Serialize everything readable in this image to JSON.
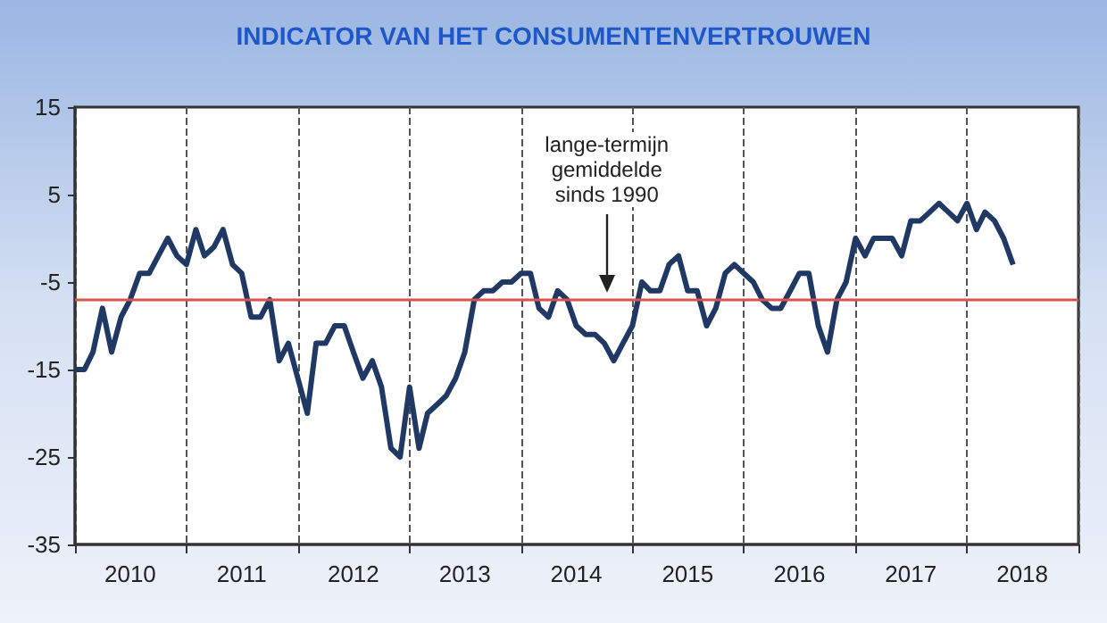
{
  "chart_data": {
    "type": "line",
    "title": "INDICATOR VAN HET CONSUMENTENVERTROUWEN",
    "x": [
      "2010-01",
      "2010-02",
      "2010-03",
      "2010-04",
      "2010-05",
      "2010-06",
      "2010-07",
      "2010-08",
      "2010-09",
      "2010-10",
      "2010-11",
      "2010-12",
      "2011-01",
      "2011-02",
      "2011-03",
      "2011-04",
      "2011-05",
      "2011-06",
      "2011-07",
      "2011-08",
      "2011-09",
      "2011-10",
      "2011-11",
      "2011-12",
      "2012-01",
      "2012-02",
      "2012-03",
      "2012-04",
      "2012-05",
      "2012-06",
      "2012-07",
      "2012-08",
      "2012-09",
      "2012-10",
      "2012-11",
      "2012-12",
      "2013-01",
      "2013-02",
      "2013-03",
      "2013-04",
      "2013-05",
      "2013-06",
      "2013-07",
      "2013-08",
      "2013-09",
      "2013-10",
      "2013-11",
      "2013-12",
      "2014-01",
      "2014-02",
      "2014-03",
      "2014-04",
      "2014-05",
      "2014-06",
      "2014-07",
      "2014-08",
      "2014-09",
      "2014-10",
      "2014-11",
      "2014-12",
      "2015-01",
      "2015-02",
      "2015-03",
      "2015-04",
      "2015-05",
      "2015-06",
      "2015-07",
      "2015-08",
      "2015-09",
      "2015-10",
      "2015-11",
      "2015-12",
      "2016-01",
      "2016-02",
      "2016-03",
      "2016-04",
      "2016-05",
      "2016-06",
      "2016-07",
      "2016-08",
      "2016-09",
      "2016-10",
      "2016-11",
      "2016-12",
      "2017-01",
      "2017-02",
      "2017-03",
      "2017-04",
      "2017-05",
      "2017-06",
      "2017-07",
      "2017-08",
      "2017-09",
      "2017-10",
      "2017-11",
      "2017-12",
      "2018-01",
      "2018-02",
      "2018-03",
      "2018-04",
      "2018-05",
      "2018-06"
    ],
    "series": [
      {
        "color": "#1f3864",
        "values": [
          -15,
          -15,
          -13,
          -8,
          -13,
          -9,
          -7,
          -4,
          -4,
          -2,
          0,
          -2,
          -3,
          1,
          -2,
          -1,
          1,
          -3,
          -4,
          -9,
          -9,
          -7,
          -14,
          -12,
          -16,
          -20,
          -12,
          -12,
          -10,
          -10,
          -13,
          -16,
          -14,
          -17,
          -24,
          -25,
          -17,
          -24,
          -20,
          -19,
          -18,
          -16,
          -13,
          -7,
          -6,
          -6,
          -5,
          -5,
          -4,
          -4,
          -8,
          -9,
          -6,
          -7,
          -10,
          -11,
          -11,
          -12,
          -14,
          -12,
          -10,
          -5,
          -6,
          -6,
          -3,
          -2,
          -6,
          -6,
          -10,
          -8,
          -4,
          -3,
          -4,
          -5,
          -7,
          -8,
          -8,
          -6,
          -4,
          -4,
          -10,
          -13,
          -7,
          -5,
          0,
          -2,
          0,
          0,
          0,
          -2,
          2,
          2,
          3,
          4,
          3,
          2,
          4,
          1,
          3,
          2,
          0,
          -3
        ]
      }
    ],
    "xlim": [
      "2010-01",
      "2019-01"
    ],
    "xticks": [
      {
        "value": "2010-01",
        "label": null
      },
      {
        "value": "2010-07",
        "label": "2010"
      },
      {
        "value": "2011-01",
        "label": null
      },
      {
        "value": "2011-07",
        "label": "2011"
      },
      {
        "value": "2012-01",
        "label": null
      },
      {
        "value": "2012-07",
        "label": "2012"
      },
      {
        "value": "2013-01",
        "label": null
      },
      {
        "value": "2013-07",
        "label": "2013"
      },
      {
        "value": "2014-01",
        "label": null
      },
      {
        "value": "2014-07",
        "label": "2014"
      },
      {
        "value": "2015-01",
        "label": null
      },
      {
        "value": "2015-07",
        "label": "2015"
      },
      {
        "value": "2016-01",
        "label": null
      },
      {
        "value": "2016-07",
        "label": "2016"
      },
      {
        "value": "2017-01",
        "label": null
      },
      {
        "value": "2017-07",
        "label": "2017"
      },
      {
        "value": "2018-01",
        "label": null
      },
      {
        "value": "2018-07",
        "label": "2018"
      },
      {
        "value": "2019-01",
        "label": null
      }
    ],
    "ylim": [
      -35,
      15
    ],
    "yticks": [
      -35,
      -25,
      -15,
      -5,
      5,
      15
    ],
    "grid": "x",
    "marker": "none",
    "line_style": "solid",
    "ref_lines": [
      {
        "axis": "y",
        "value": -7,
        "color": "#d9534f"
      }
    ],
    "annotations": [
      "lange-termijn\ngemiddelde\nsinds 1990"
    ]
  }
}
